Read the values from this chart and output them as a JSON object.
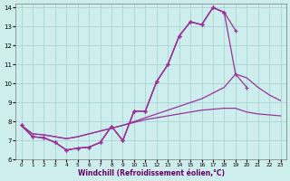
{
  "xlabel": "Windchill (Refroidissement éolien,°C)",
  "bg_color": "#ceeeed",
  "grid_color": "#aad4d4",
  "line_color": "#993399",
  "xlim": [
    -0.5,
    23.5
  ],
  "ylim": [
    6,
    14.2
  ],
  "yticks": [
    6,
    7,
    8,
    9,
    10,
    11,
    12,
    13,
    14
  ],
  "xticks": [
    0,
    1,
    2,
    3,
    4,
    5,
    6,
    7,
    8,
    9,
    10,
    11,
    12,
    13,
    14,
    15,
    16,
    17,
    18,
    19,
    20,
    21,
    22,
    23
  ],
  "line1_x": [
    0,
    1,
    2,
    3,
    4,
    5,
    6,
    7,
    8,
    9,
    10,
    11,
    12,
    13,
    14,
    15,
    16,
    17,
    18,
    19,
    20,
    21,
    22,
    23
  ],
  "line1_y": [
    7.8,
    7.2,
    7.15,
    6.9,
    6.5,
    6.6,
    6.65,
    6.9,
    7.75,
    7.0,
    8.55,
    8.55,
    10.1,
    11.0,
    12.5,
    13.25,
    13.1,
    14.0,
    13.75,
    null,
    null,
    null,
    null,
    null
  ],
  "line2_x": [
    0,
    1,
    2,
    3,
    4,
    5,
    6,
    7,
    8,
    9,
    10,
    11,
    12,
    13,
    14,
    15,
    16,
    17,
    18,
    19,
    20,
    21,
    22,
    23
  ],
  "line2_y": [
    7.8,
    7.2,
    7.15,
    6.9,
    6.5,
    6.6,
    6.65,
    6.9,
    7.75,
    7.0,
    8.55,
    8.55,
    10.1,
    11.0,
    12.5,
    13.25,
    13.1,
    14.0,
    13.75,
    12.8,
    null,
    null,
    null,
    null
  ],
  "line3_x": [
    0,
    1,
    2,
    3,
    4,
    5,
    6,
    7,
    8,
    9,
    10,
    11,
    12,
    13,
    14,
    15,
    16,
    17,
    18,
    19,
    20,
    21,
    22,
    23
  ],
  "line3_y": [
    7.8,
    7.2,
    7.15,
    6.9,
    6.5,
    6.6,
    6.65,
    6.9,
    7.75,
    7.0,
    8.55,
    8.55,
    10.1,
    11.0,
    12.5,
    13.25,
    13.1,
    14.0,
    13.75,
    10.5,
    9.8,
    null,
    null,
    null
  ],
  "line_smooth1_x": [
    0,
    1,
    2,
    3,
    4,
    5,
    6,
    7,
    8,
    9,
    10,
    11,
    12,
    13,
    14,
    15,
    16,
    17,
    18,
    19,
    20,
    21,
    22,
    23
  ],
  "line_smooth1_y": [
    7.8,
    7.35,
    7.3,
    7.2,
    7.1,
    7.2,
    7.35,
    7.5,
    7.65,
    7.8,
    8.0,
    8.2,
    8.4,
    8.6,
    8.8,
    9.0,
    9.2,
    9.5,
    9.8,
    10.5,
    10.3,
    9.8,
    9.4,
    9.1
  ],
  "line_smooth2_x": [
    0,
    1,
    2,
    3,
    4,
    5,
    6,
    7,
    8,
    9,
    10,
    11,
    12,
    13,
    14,
    15,
    16,
    17,
    18,
    19,
    20,
    21,
    22,
    23
  ],
  "line_smooth2_y": [
    7.8,
    7.35,
    7.3,
    7.2,
    7.1,
    7.2,
    7.35,
    7.5,
    7.65,
    7.8,
    7.95,
    8.1,
    8.2,
    8.3,
    8.4,
    8.5,
    8.6,
    8.65,
    8.7,
    8.7,
    8.5,
    8.4,
    8.35,
    8.3
  ]
}
